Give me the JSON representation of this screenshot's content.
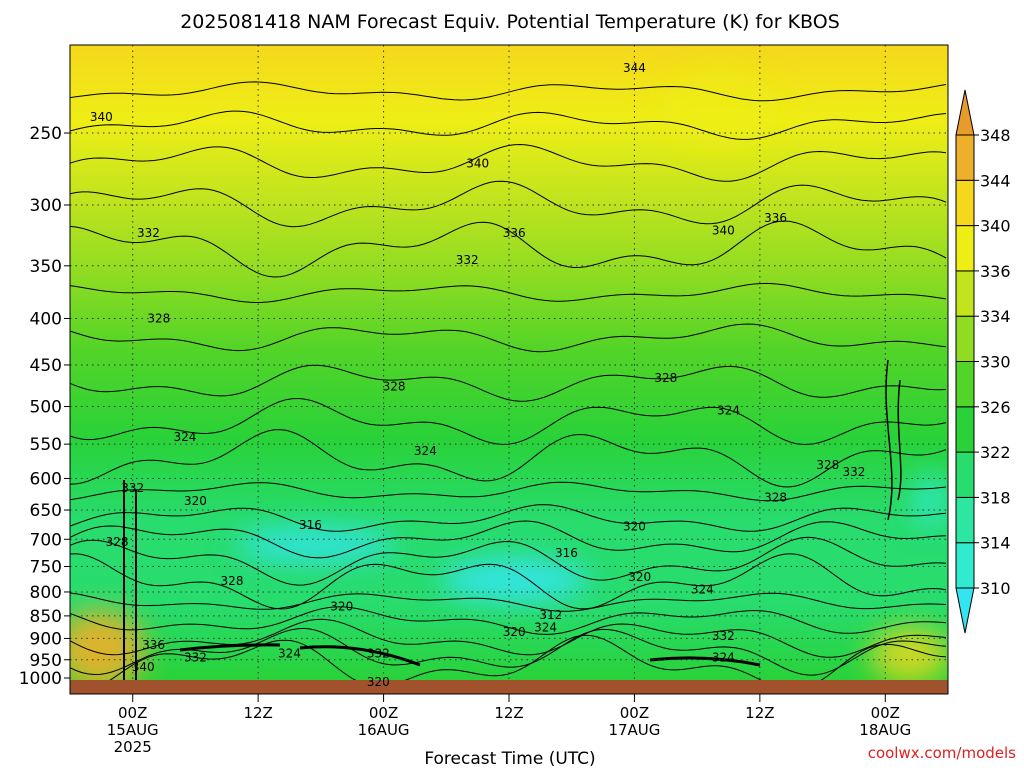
{
  "chart_data": {
    "type": "heatmap",
    "title": "2025081418 NAM Forecast Equiv. Potential Temperature (K) for KBOS",
    "xlabel": "Forecast Time (UTC)",
    "ylabel": "",
    "y_scale": "log",
    "y_reversed": true,
    "ylim": [
      1000,
      200
    ],
    "y_ticks": [
      250,
      300,
      350,
      400,
      450,
      500,
      550,
      600,
      650,
      700,
      750,
      800,
      850,
      900,
      950,
      1000
    ],
    "x_ticks": [
      {
        "hour": 0,
        "line1": "00Z",
        "line2": "15AUG",
        "line3": "2025"
      },
      {
        "hour": 12,
        "line1": "12Z",
        "line2": "",
        "line3": ""
      },
      {
        "hour": 24,
        "line1": "00Z",
        "line2": "16AUG",
        "line3": ""
      },
      {
        "hour": 36,
        "line1": "12Z",
        "line2": "",
        "line3": ""
      },
      {
        "hour": 48,
        "line1": "00Z",
        "line2": "17AUG",
        "line3": ""
      },
      {
        "hour": 60,
        "line1": "12Z",
        "line2": "",
        "line3": ""
      },
      {
        "hour": 72,
        "line1": "00Z",
        "line2": "18AUG",
        "line3": ""
      }
    ],
    "xlim": [
      -6,
      78
    ],
    "grid": true,
    "colorbar": {
      "levels": [
        310,
        314,
        318,
        322,
        326,
        330,
        334,
        336,
        340,
        344,
        348
      ],
      "colors": [
        "#33e5f0",
        "#30ebcf",
        "#2ce6a2",
        "#28dc6e",
        "#29d239",
        "#53d428",
        "#8fdc22",
        "#c2e41e",
        "#eeee16",
        "#f5d81c",
        "#eeb02a",
        "#e89a2c"
      ]
    },
    "contour_labels": [
      {
        "value": "344",
        "hour": 48,
        "p": 212
      },
      {
        "value": "340",
        "hour": -3,
        "p": 240
      },
      {
        "value": "340",
        "hour": 33,
        "p": 270
      },
      {
        "value": "340",
        "hour": 56.5,
        "p": 320
      },
      {
        "value": "336",
        "hour": 36.5,
        "p": 322
      },
      {
        "value": "336",
        "hour": 61.5,
        "p": 310
      },
      {
        "value": "332",
        "hour": 1.5,
        "p": 322
      },
      {
        "value": "332",
        "hour": 32,
        "p": 345
      },
      {
        "value": "328",
        "hour": 2.5,
        "p": 400
      },
      {
        "value": "328",
        "hour": 25,
        "p": 475
      },
      {
        "value": "328",
        "hour": 51,
        "p": 465
      },
      {
        "value": "328",
        "hour": 66.5,
        "p": 580
      },
      {
        "value": "328",
        "hour": 61.5,
        "p": 630
      },
      {
        "value": "328",
        "hour": -1.5,
        "p": 705
      },
      {
        "value": "328",
        "hour": 9.5,
        "p": 778
      },
      {
        "value": "332",
        "hour": 0,
        "p": 615
      },
      {
        "value": "332",
        "hour": 69,
        "p": 590
      },
      {
        "value": "324",
        "hour": 5,
        "p": 540
      },
      {
        "value": "324",
        "hour": 28,
        "p": 560
      },
      {
        "value": "324",
        "hour": 57,
        "p": 505
      },
      {
        "value": "320",
        "hour": 6,
        "p": 635
      },
      {
        "value": "320",
        "hour": 48,
        "p": 678
      },
      {
        "value": "320",
        "hour": 48.5,
        "p": 770
      },
      {
        "value": "320",
        "hour": 20,
        "p": 830
      },
      {
        "value": "320",
        "hour": 36.5,
        "p": 885
      },
      {
        "value": "320",
        "hour": 23.5,
        "p": 1005
      },
      {
        "value": "316",
        "hour": 17,
        "p": 675
      },
      {
        "value": "316",
        "hour": 41.5,
        "p": 725
      },
      {
        "value": "312",
        "hour": 40,
        "p": 848
      },
      {
        "value": "324",
        "hour": 39.5,
        "p": 875
      },
      {
        "value": "324",
        "hour": 54.5,
        "p": 795
      },
      {
        "value": "324",
        "hour": 15,
        "p": 935
      },
      {
        "value": "324",
        "hour": 56.5,
        "p": 945
      },
      {
        "value": "332",
        "hour": 23.5,
        "p": 935
      },
      {
        "value": "332",
        "hour": 56.5,
        "p": 895
      },
      {
        "value": "332",
        "hour": 6,
        "p": 945
      },
      {
        "value": "336",
        "hour": 2,
        "p": 915
      },
      {
        "value": "340",
        "hour": 1,
        "p": 967
      }
    ]
  },
  "watermark": "coolwx.com/models"
}
